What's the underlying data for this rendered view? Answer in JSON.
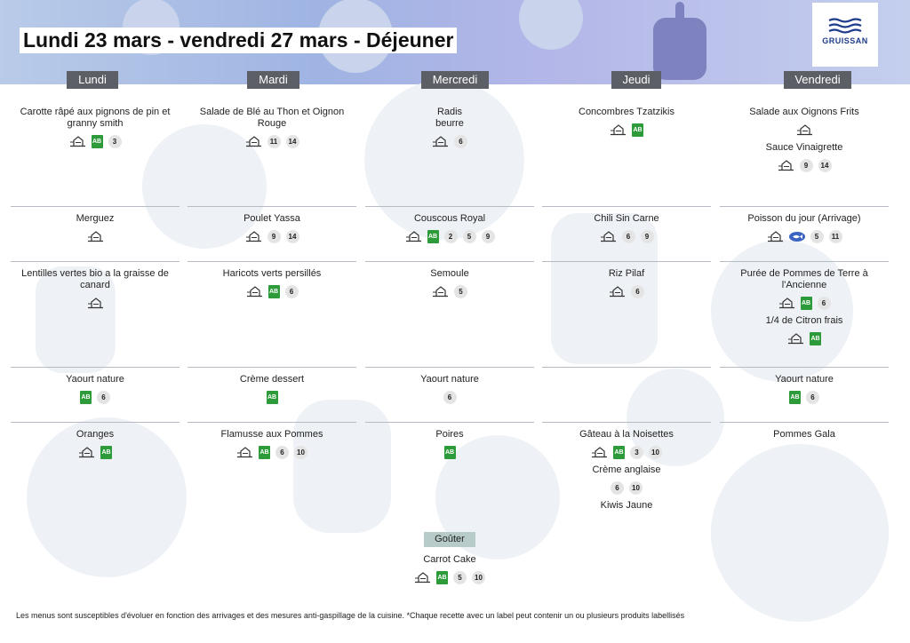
{
  "title": "Lundi 23 mars - vendredi 27 mars  - Déjeuner",
  "logo": {
    "name": "GRUISSAN",
    "tagline": "· · · · · · ·"
  },
  "days": [
    "Lundi",
    "Mardi",
    "Mercredi",
    "Jeudi",
    "Vendredi"
  ],
  "columns": [
    [
      [
        {
          "name": "Carotte râpé aux pignons de pin et granny smith",
          "labels": [
            "home-icon",
            "ab-icon"
          ],
          "allergens": [
            "3"
          ]
        }
      ],
      [
        {
          "name": "Merguez",
          "labels": [
            "home-icon"
          ],
          "allergens": []
        }
      ],
      [
        {
          "name": "Lentilles vertes bio a la graisse de canard",
          "labels": [
            "home-icon"
          ],
          "allergens": []
        }
      ],
      [
        {
          "name": "Yaourt nature",
          "labels": [
            "ab-icon"
          ],
          "allergens": [
            "6"
          ]
        }
      ],
      [
        {
          "name": "Oranges",
          "labels": [
            "home-icon",
            "ab-icon"
          ],
          "allergens": []
        }
      ]
    ],
    [
      [
        {
          "name": "Salade de Blé au Thon et Oignon Rouge",
          "labels": [
            "home-icon"
          ],
          "allergens": [
            "11",
            "14"
          ]
        }
      ],
      [
        {
          "name": "Poulet Yassa",
          "labels": [
            "home-icon"
          ],
          "allergens": [
            "9",
            "14"
          ]
        }
      ],
      [
        {
          "name": "Haricots verts persillés",
          "labels": [
            "home-icon",
            "ab-icon"
          ],
          "allergens": [
            "6"
          ]
        }
      ],
      [
        {
          "name": "Crème dessert",
          "labels": [
            "ab-icon"
          ],
          "allergens": []
        }
      ],
      [
        {
          "name": "Flamusse aux Pommes",
          "labels": [
            "home-icon",
            "ab-icon"
          ],
          "allergens": [
            "6",
            "10"
          ]
        }
      ]
    ],
    [
      [
        {
          "name": "Radis\nbeurre",
          "labels": [
            "home-icon"
          ],
          "allergens": [
            "6"
          ]
        }
      ],
      [
        {
          "name": "Couscous Royal",
          "labels": [
            "home-icon",
            "ab-icon"
          ],
          "allergens": [
            "2",
            "5",
            "9"
          ]
        }
      ],
      [
        {
          "name": "Semoule",
          "labels": [
            "home-icon"
          ],
          "allergens": [
            "5"
          ]
        }
      ],
      [
        {
          "name": "Yaourt nature",
          "labels": [],
          "allergens": [
            "6"
          ]
        }
      ],
      [
        {
          "name": "Poires",
          "labels": [
            "ab-icon"
          ],
          "allergens": []
        }
      ]
    ],
    [
      [
        {
          "name": "Concombres Tzatzikis",
          "labels": [
            "home-icon",
            "ab-icon"
          ],
          "allergens": []
        }
      ],
      [
        {
          "name": "Chili Sin Carne",
          "labels": [
            "home-icon"
          ],
          "allergens": [
            "6",
            "9"
          ]
        }
      ],
      [
        {
          "name": "Riz Pilaf",
          "labels": [
            "home-icon"
          ],
          "allergens": [
            "6"
          ]
        }
      ],
      [],
      [
        {
          "name": "Gâteau à la Noisettes",
          "labels": [
            "home-icon",
            "ab-icon"
          ],
          "allergens": [
            "3",
            "10"
          ]
        },
        {
          "name": "Crème anglaise",
          "labels": [],
          "allergens": [
            "6",
            "10"
          ]
        },
        {
          "name": "Kiwis Jaune",
          "labels": [],
          "allergens": []
        }
      ]
    ],
    [
      [
        {
          "name": "Salade aux Oignons Frits",
          "labels": [
            "home-icon"
          ],
          "allergens": []
        },
        {
          "name": "Sauce Vinaigrette",
          "labels": [
            "home-icon"
          ],
          "allergens": [
            "9",
            "14"
          ]
        }
      ],
      [
        {
          "name": "Poisson du jour (Arrivage)",
          "labels": [
            "home-icon",
            "fish-icon"
          ],
          "allergens": [
            "5",
            "11"
          ]
        }
      ],
      [
        {
          "name": "Purée de Pommes de Terre à l'Ancienne",
          "labels": [
            "home-icon",
            "ab-icon"
          ],
          "allergens": [
            "6"
          ]
        },
        {
          "name": "1/4 de Citron frais",
          "labels": [
            "home-icon",
            "ab-icon"
          ],
          "allergens": []
        }
      ],
      [
        {
          "name": "Yaourt nature",
          "labels": [
            "ab-icon"
          ],
          "allergens": [
            "6"
          ]
        }
      ],
      [
        {
          "name": "Pommes Gala",
          "labels": [],
          "allergens": []
        }
      ]
    ]
  ],
  "gouter": {
    "label": "Goûter",
    "dish": {
      "name": "Carrot Cake",
      "labels": [
        "home-icon",
        "ab-icon"
      ],
      "allergens": [
        "5",
        "10"
      ]
    }
  },
  "ab_text": "AB",
  "footer": "Les menus sont susceptibles d'évoluer en fonction des arrivages et des mesures anti-gaspillage de la cuisine. *Chaque recette avec un label peut contenir un ou plusieurs produits labellisés",
  "colors": {
    "header": "#5c5f66",
    "ab": "#2e9b3b",
    "allergen_bg": "#e4e4e4",
    "gouter": "#b7ccc8",
    "banner": "#9fb4e3"
  }
}
